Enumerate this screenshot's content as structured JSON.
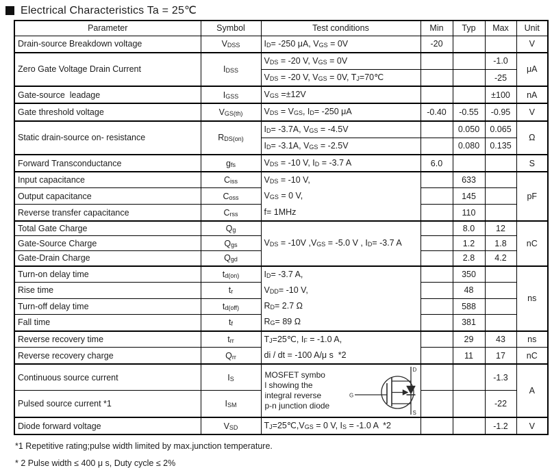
{
  "title": "Electrical Characteristics Ta = 25℃",
  "table": {
    "header": [
      "Parameter",
      "Symbol",
      "Test conditions",
      "Min",
      "Typ",
      "Max",
      "Unit"
    ],
    "rows": [
      {
        "end": true,
        "cells": [
          "Drain-source Breakdown voltage",
          "V~DSS~",
          "I~D~= -250 μA, V~GS~ = 0V",
          "-20",
          "",
          "",
          "V"
        ]
      },
      {
        "cells": [
          {
            "t": "Zero Gate Voltage Drain Current",
            "rs": 2
          },
          {
            "t": "I~DSS~",
            "rs": 2
          },
          "V~DS~ = -20 V, V~GS~ = 0V",
          "",
          "",
          "-1.0",
          {
            "t": "μA",
            "rs": 2
          }
        ]
      },
      {
        "end": true,
        "cells": [
          "V~DS~ = -20 V, V~GS~ = 0V, T~J~=70℃",
          "",
          "",
          "-25"
        ]
      },
      {
        "end": true,
        "cells": [
          "Gate-source  leadage",
          "I~GSS~",
          "V~GS~ =±12V",
          "",
          "",
          "±100",
          "nA"
        ]
      },
      {
        "end": true,
        "cells": [
          "Gate threshold voltage",
          "V~GS(th)~",
          "V~DS~ = V~GS~, I~D~= -250 μA",
          "-0.40",
          "-0.55",
          "-0.95",
          "V"
        ]
      },
      {
        "cells": [
          {
            "t": "Static drain-source on- resistance",
            "rs": 2
          },
          {
            "t": "R~DS(on)~",
            "rs": 2
          },
          "I~D~= -3.7A, V~GS~ = -4.5V",
          "",
          "0.050",
          "0.065",
          {
            "t": "Ω",
            "rs": 2
          }
        ]
      },
      {
        "end": true,
        "cells": [
          "I~D~= -3.1A, V~GS~ = -2.5V",
          "",
          "0.080",
          "0.135"
        ]
      },
      {
        "end": true,
        "cells": [
          "Forward Transconductance",
          "g~fs~",
          "V~DS~ = -10 V, I~D~ = -3.7 A",
          "6.0",
          "",
          "",
          "S"
        ]
      },
      {
        "cells": [
          "Input capacitance",
          "C~iss~",
          {
            "t": "V~DS~ = -10 V,\nV~GS~ = 0 V,\nf= 1MHz",
            "rs": 3
          },
          "",
          "633",
          "",
          {
            "t": "pF",
            "rs": 3
          }
        ]
      },
      {
        "cells": [
          "Output capacitance",
          "C~oss~",
          "",
          "145",
          ""
        ]
      },
      {
        "end": true,
        "cells": [
          "Reverse transfer capacitance",
          "C~rss~",
          "",
          "110",
          ""
        ]
      },
      {
        "cells": [
          "Total Gate Charge",
          "Q~g~",
          {
            "t": "V~DS~ = -10V ,V~GS~ = -5.0 V , I~D~= -3.7 A",
            "rs": 3
          },
          "",
          "8.0",
          "12",
          {
            "t": "nC",
            "rs": 3
          }
        ]
      },
      {
        "cells": [
          "Gate-Source Charge",
          "Q~gs~",
          "",
          "1.2",
          "1.8"
        ]
      },
      {
        "end": true,
        "cells": [
          "Gate-Drain Charge",
          "Q~gd~",
          "",
          "2.8",
          "4.2"
        ]
      },
      {
        "cells": [
          "Turn-on delay time",
          "t~d(on)~",
          {
            "t": "I~D~= -3.7 A,\nV~DD~= -10 V,\nR~D~= 2.7 Ω\nR~G~= 89 Ω",
            "rs": 4
          },
          "",
          "350",
          "",
          {
            "t": "ns",
            "rs": 4
          }
        ]
      },
      {
        "cells": [
          "Rise time",
          "t~r~",
          "",
          "48",
          ""
        ]
      },
      {
        "cells": [
          "Turn-off delay time",
          "t~d(off)~",
          "",
          "588",
          ""
        ]
      },
      {
        "end": true,
        "cells": [
          "Fall time",
          "t~f~",
          "",
          "381",
          ""
        ]
      },
      {
        "cells": [
          "Reverse recovery time",
          "t~rr~",
          {
            "t": "T~J~=25℃, I~F~ = -1.0 A,\ndi / dt = -100 A/μ s  *2",
            "rs": 2
          },
          "",
          "29",
          "43",
          "ns"
        ]
      },
      {
        "end": true,
        "cells": [
          "Reverse recovery charge",
          "Q~rr~",
          "",
          "11",
          "17",
          "nC"
        ]
      },
      {
        "h": 39,
        "cells": [
          "Continuous source current",
          "I~S~",
          {
            "t": "MOSFET symbo\nl showing the\nintegral reverse\np-n junction diode",
            "rs": 2,
            "mosfet": true
          },
          "",
          "",
          "-1.3",
          {
            "t": "A",
            "rs": 2
          }
        ]
      },
      {
        "end": true,
        "h": 39,
        "cells": [
          "Pulsed source current *1",
          "I~SM~",
          "",
          "",
          "-22"
        ]
      },
      {
        "cells": [
          "Diode forward voltage",
          "V~SD~",
          "T~J~=25℃,V~GS~ = 0 V, I~S~ = -1.0 A  *2",
          "",
          "",
          "-1.2",
          "V"
        ]
      }
    ]
  },
  "mosfet": {
    "d": "D",
    "g": "G",
    "s": "S"
  },
  "footnotes": [
    "*1 Repetitive rating;pulse width limited by max.junction temperature.",
    "* 2 Pulse width ≤ 400 μ s, Duty cycle ≤ 2%"
  ]
}
